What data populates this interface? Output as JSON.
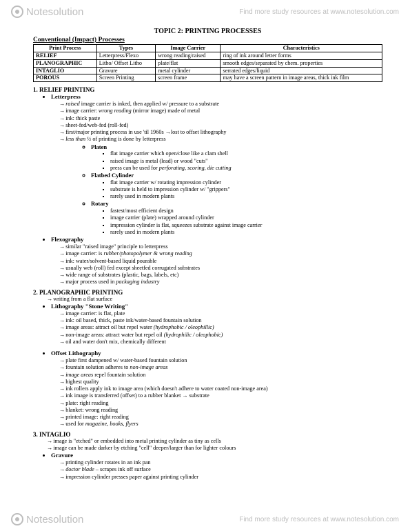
{
  "watermark": {
    "logo_text": "Notesolution",
    "link_text": "Find more study resources at www.notesolution.com"
  },
  "topic_title": "TOPIC 2: PRINTING PROCESSES",
  "table_heading": "Conventional (Impact) Processes",
  "table": {
    "headers": [
      "Print Process",
      "Types",
      "Image Carrier",
      "Characteristics"
    ],
    "rows": [
      [
        "RELIEF",
        "Letterpress/Flexo",
        "wrong reading/raised",
        "ring of ink around letter forms"
      ],
      [
        "PLANOGRAPHIC",
        "Litho/ Offset Litho",
        "plate/flat",
        "smooth edges/separated by chem. properties"
      ],
      [
        "INTAGLIO",
        "Gravure",
        "metal cylinder",
        "serrated edges/liquid"
      ],
      [
        "POROUS",
        "Screen Printing",
        "screen frame",
        "may have a screen pattern in image areas, thick ink film"
      ]
    ]
  },
  "s1": {
    "heading": "1. RELIEF PRINTING",
    "letterpress": "Letterpress",
    "lp_a1": "<i>raised</i> image carrier is inked, then applied w/ pressure to a substrate",
    "lp_a2": "image carrier: <i>wrong reading</i>  (mirror image) made of metal",
    "lp_a3": "ink: thick paste",
    "lp_a4": "sheet-fed/web-fed (roll-fed)",
    "lp_a5": "first/major printing process in use 'til 1960s →lost to offset lithography",
    "lp_a6": "<i>less than ½</i> of printing is done by letterpress",
    "platen": "Platen",
    "pl1": "flat image carrier which open/close like a clam shell",
    "pl2": "raised image is metal (lead) or wood \"cuts\"",
    "pl3": "press can be used for <i>perforating, scoring, die cutting</i>",
    "flatbed": "Flatbed Cylinder",
    "fb1": "flat image carrier w/ rotating impression cylinder",
    "fb2": "substrate is held to impression cylinder w/ \"grippers\"",
    "fb3": "rarely used in modern plants",
    "rotary": "Rotary",
    "ro1": "fastest/most efficient design",
    "ro2": "image carrier (plate) wrapped around cylinder",
    "ro3": "impression cylinder is flat, squeezes substrate against image carrier",
    "ro4": "rarely used in modern plants",
    "flexo": "Flexography",
    "fx1": "similar \"raised image\" principle to letterpress",
    "fx2": "image carrier: is <i>rubber/photopolymer & wrong reading</i>",
    "fx3": "ink: water/solvent-based liquid pourable",
    "fx4": "usually web (roll) fed except sheetfed corrugated substrates",
    "fx5": "wide range of substrates (plastic, bags, labels, etc)",
    "fx6": "major process used in <i>packaging industry</i>"
  },
  "s2": {
    "heading": "2. PLANOGRAPHIC PRINTING",
    "intro": "writing from a flat surface",
    "litho": "Lithography \"Stone Writing\"",
    "li1": "image carrier: is flat, plate",
    "li2": "ink: oil based, thick, paste ink/water-based fountain solution",
    "li3": "image areas: attract oil but repel water <i>(hydrophobic / oleophillic)</i>",
    "li4": "non-image areas: attract water but repel oil <i>(hydrophilic / oleophobic)</i>",
    "li5": "oil and water don't mix, chemically different",
    "offset": "Offset Lithography",
    "of1": "plate first dampened w/ water-based fountain solution",
    "of2": "fountain solution adheres to <i>non-image areas</i>",
    "of3": "<i>image areas</i> repel fountain solution",
    "of4": "highest quality",
    "of5": "ink rollers apply ink to image area (which doesn't adhere to water coated non-image area)",
    "of6": "ink image is transferred (offset) to a rubber blanket → substrate",
    "of7": "plate: right reading",
    "of8": "blanket: wrong reading",
    "of9": "printed image: right reading",
    "of10": "used for <i>magazine, books, flyers</i>"
  },
  "s3": {
    "heading": "3. INTAGLIO",
    "a1": "image is \"etched\" or embedded into metal printing cylinder as tiny as cells",
    "a2": "image can be made darker by etching \"cell\" deeper/larger than for lighter colours",
    "gravure": "Gravure",
    "gv1": "printing cylinder rotates in an ink pan",
    "gv2": "<i>doctor blade</i> – scrapes ink off surface",
    "gv3": "impression cylinder presses paper against printing cylinder"
  }
}
